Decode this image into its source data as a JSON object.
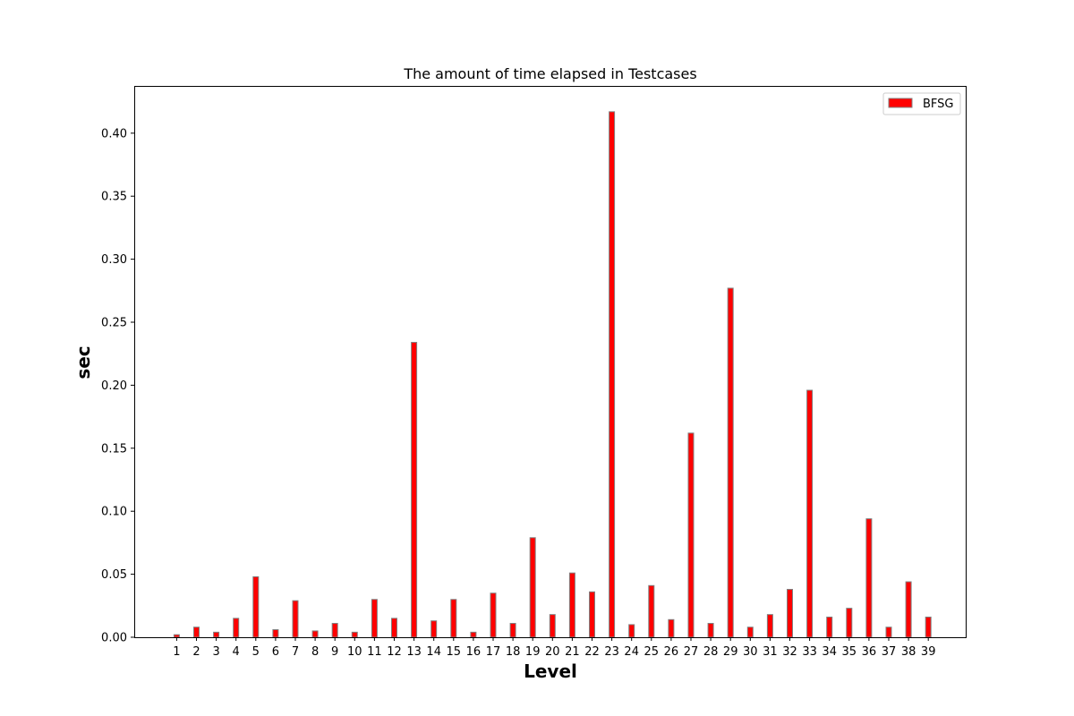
{
  "chart_data": {
    "type": "bar",
    "title": "The amount of time elapsed in  Testcases",
    "xlabel": "Level",
    "ylabel": "sec",
    "categories": [
      "1",
      "2",
      "3",
      "4",
      "5",
      "6",
      "7",
      "8",
      "9",
      "10",
      "11",
      "12",
      "13",
      "14",
      "15",
      "16",
      "17",
      "18",
      "19",
      "20",
      "21",
      "22",
      "23",
      "24",
      "25",
      "26",
      "27",
      "28",
      "29",
      "30",
      "31",
      "32",
      "33",
      "34",
      "35",
      "36",
      "37",
      "38",
      "39"
    ],
    "series": [
      {
        "name": "BFSG",
        "color": "#ff0000",
        "edge_color": "#808080",
        "values": [
          0.002,
          0.008,
          0.004,
          0.015,
          0.048,
          0.006,
          0.029,
          0.005,
          0.011,
          0.004,
          0.03,
          0.015,
          0.234,
          0.013,
          0.03,
          0.004,
          0.035,
          0.011,
          0.079,
          0.018,
          0.051,
          0.036,
          0.417,
          0.01,
          0.041,
          0.014,
          0.162,
          0.011,
          0.277,
          0.008,
          0.018,
          0.038,
          0.196,
          0.016,
          0.023,
          0.094,
          0.008,
          0.044,
          0.016
        ]
      }
    ],
    "ylim": [
      0,
      0.4375
    ],
    "yticks": [
      "0.00",
      "0.05",
      "0.10",
      "0.15",
      "0.20",
      "0.25",
      "0.30",
      "0.35",
      "0.40"
    ],
    "grid": false,
    "legend_position": "top-right"
  }
}
